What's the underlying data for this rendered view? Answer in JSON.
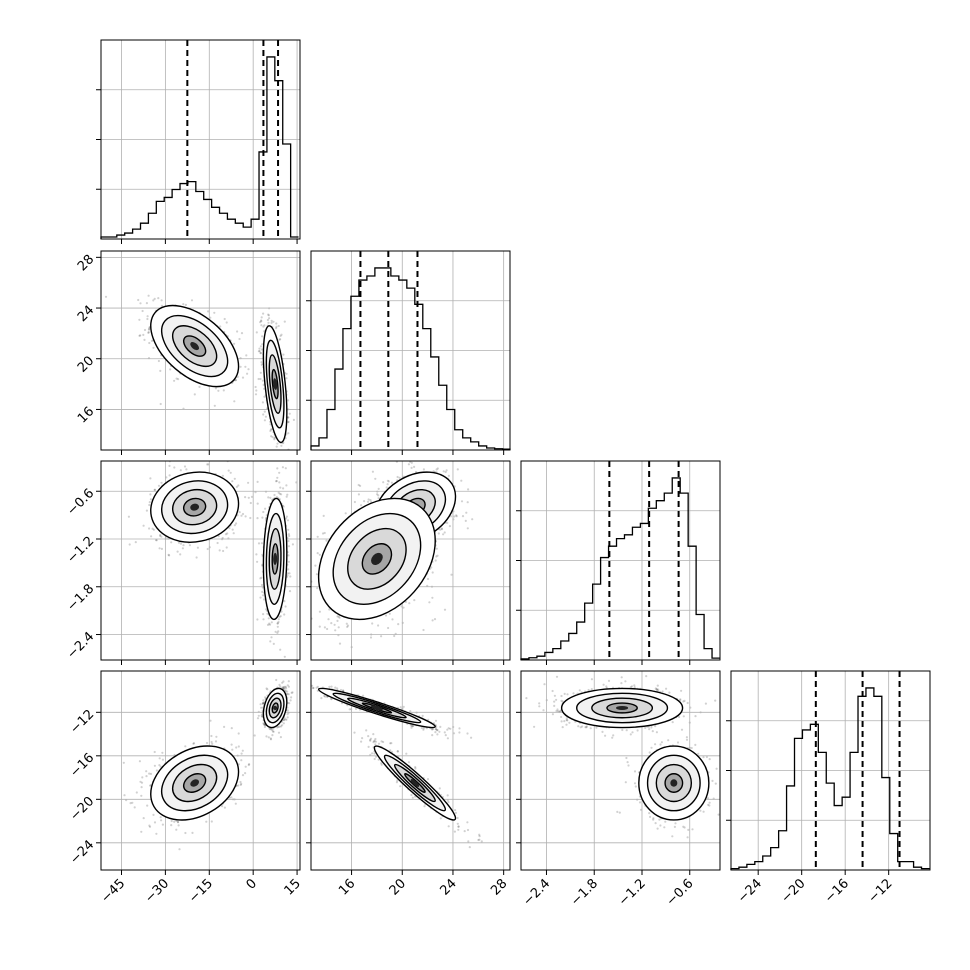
{
  "chart_data": {
    "type": "corner",
    "grid": true,
    "parameters": [
      {
        "range": [
          -52,
          16
        ],
        "ticks": [
          -45,
          -30,
          -15,
          0,
          15
        ],
        "tick_labels": [
          "−45",
          "−30",
          "−15",
          "0",
          "15"
        ]
      },
      {
        "range": [
          12.8,
          28.5
        ],
        "ticks": [
          16,
          20,
          24,
          28
        ],
        "tick_labels": [
          "16",
          "20",
          "24",
          "28"
        ]
      },
      {
        "range": [
          -2.72,
          -0.22
        ],
        "ticks": [
          -2.4,
          -1.8,
          -1.2,
          -0.6
        ],
        "tick_labels": [
          "−2.4",
          "−1.8",
          "−1.2",
          "−0.6"
        ]
      },
      {
        "range": [
          -26.5,
          -8.2
        ],
        "ticks": [
          -24,
          -20,
          -16,
          -12
        ],
        "tick_labels": [
          "−24",
          "−20",
          "−16",
          "−12"
        ]
      }
    ],
    "histograms": [
      {
        "edges": [
          -52,
          -49.3,
          -46.6,
          -43.9,
          -41.2,
          -38.5,
          -35.8,
          -33.1,
          -30.4,
          -27.7,
          -25,
          -22.3,
          -19.6,
          -16.9,
          -14.2,
          -11.5,
          -8.8,
          -6.1,
          -3.4,
          -0.7,
          2,
          4.7,
          7.4,
          10.1,
          12.8,
          15.5
        ],
        "counts": [
          0.01,
          0.01,
          0.02,
          0.03,
          0.05,
          0.08,
          0.13,
          0.19,
          0.21,
          0.25,
          0.28,
          0.29,
          0.24,
          0.2,
          0.16,
          0.13,
          0.1,
          0.08,
          0.06,
          0.1,
          0.44,
          0.92,
          0.8,
          0.48,
          0.01
        ],
        "quantiles": [
          -22.5,
          3.5,
          8.5
        ]
      },
      {
        "edges": [
          12.8,
          13.43,
          14.06,
          14.69,
          15.32,
          15.95,
          16.58,
          17.21,
          17.84,
          18.47,
          19.1,
          19.73,
          20.36,
          20.99,
          21.62,
          22.25,
          22.88,
          23.51,
          24.14,
          24.77,
          25.4,
          26.03,
          26.66,
          27.29,
          27.92,
          28.55
        ],
        "counts": [
          0.01,
          0.03,
          0.1,
          0.2,
          0.3,
          0.38,
          0.42,
          0.43,
          0.45,
          0.45,
          0.43,
          0.42,
          0.4,
          0.36,
          0.3,
          0.23,
          0.16,
          0.1,
          0.05,
          0.03,
          0.02,
          0.01,
          0.005,
          0.003,
          0.002
        ],
        "quantiles": [
          16.7,
          18.9,
          21.2
        ]
      },
      {
        "edges": [
          -2.72,
          -2.62,
          -2.52,
          -2.42,
          -2.32,
          -2.22,
          -2.12,
          -2.02,
          -1.92,
          -1.82,
          -1.72,
          -1.62,
          -1.52,
          -1.42,
          -1.32,
          -1.22,
          -1.12,
          -1.02,
          -0.92,
          -0.82,
          -0.72,
          -0.62,
          -0.52,
          -0.42,
          -0.32,
          -0.22
        ],
        "counts": [
          0.003,
          0.006,
          0.01,
          0.02,
          0.03,
          0.05,
          0.07,
          0.1,
          0.15,
          0.2,
          0.27,
          0.3,
          0.32,
          0.33,
          0.35,
          0.36,
          0.4,
          0.42,
          0.44,
          0.48,
          0.44,
          0.3,
          0.12,
          0.03,
          0.005
        ],
        "quantiles": [
          -1.61,
          -1.11,
          -0.74
        ]
      },
      {
        "edges": [
          -26.5,
          -25.77,
          -25.04,
          -24.31,
          -23.58,
          -22.85,
          -22.12,
          -21.39,
          -20.66,
          -19.93,
          -19.2,
          -18.47,
          -17.74,
          -17.01,
          -16.28,
          -15.55,
          -14.82,
          -14.09,
          -13.36,
          -12.63,
          -11.9,
          -11.17,
          -10.44,
          -9.71,
          -8.98,
          -8.25
        ],
        "counts": [
          0.005,
          0.01,
          0.02,
          0.03,
          0.05,
          0.08,
          0.14,
          0.3,
          0.47,
          0.5,
          0.52,
          0.42,
          0.31,
          0.23,
          0.26,
          0.42,
          0.62,
          0.65,
          0.62,
          0.33,
          0.13,
          0.03,
          0.03,
          0.01,
          0.005
        ],
        "quantiles": [
          -18.7,
          -14.4,
          -11.0
        ]
      }
    ],
    "modes": [
      {
        "weight": 0.45,
        "mean": [
          -20,
          21,
          -0.8,
          -18.5
        ],
        "sd": [
          7.5,
          1.6,
          0.22,
          1.7
        ]
      },
      {
        "weight": 0.55,
        "mean": [
          7.5,
          18,
          -1.45,
          -11.6
        ],
        "sd": [
          2.0,
          2.3,
          0.38,
          0.9
        ]
      }
    ],
    "correlations": {
      "0": {
        "1": -0.5,
        "2": 0.1,
        "3": 0.3
      },
      "1": {
        "2": 0.3,
        "3": -0.95
      },
      "2": {
        "3": 0.0
      }
    },
    "contour_levels_sigma": [
      0.5,
      1.0,
      1.5,
      2.0
    ],
    "colors": {
      "line": "#000000",
      "grid": "#b0b0b0",
      "fill": "#ffffff"
    }
  }
}
